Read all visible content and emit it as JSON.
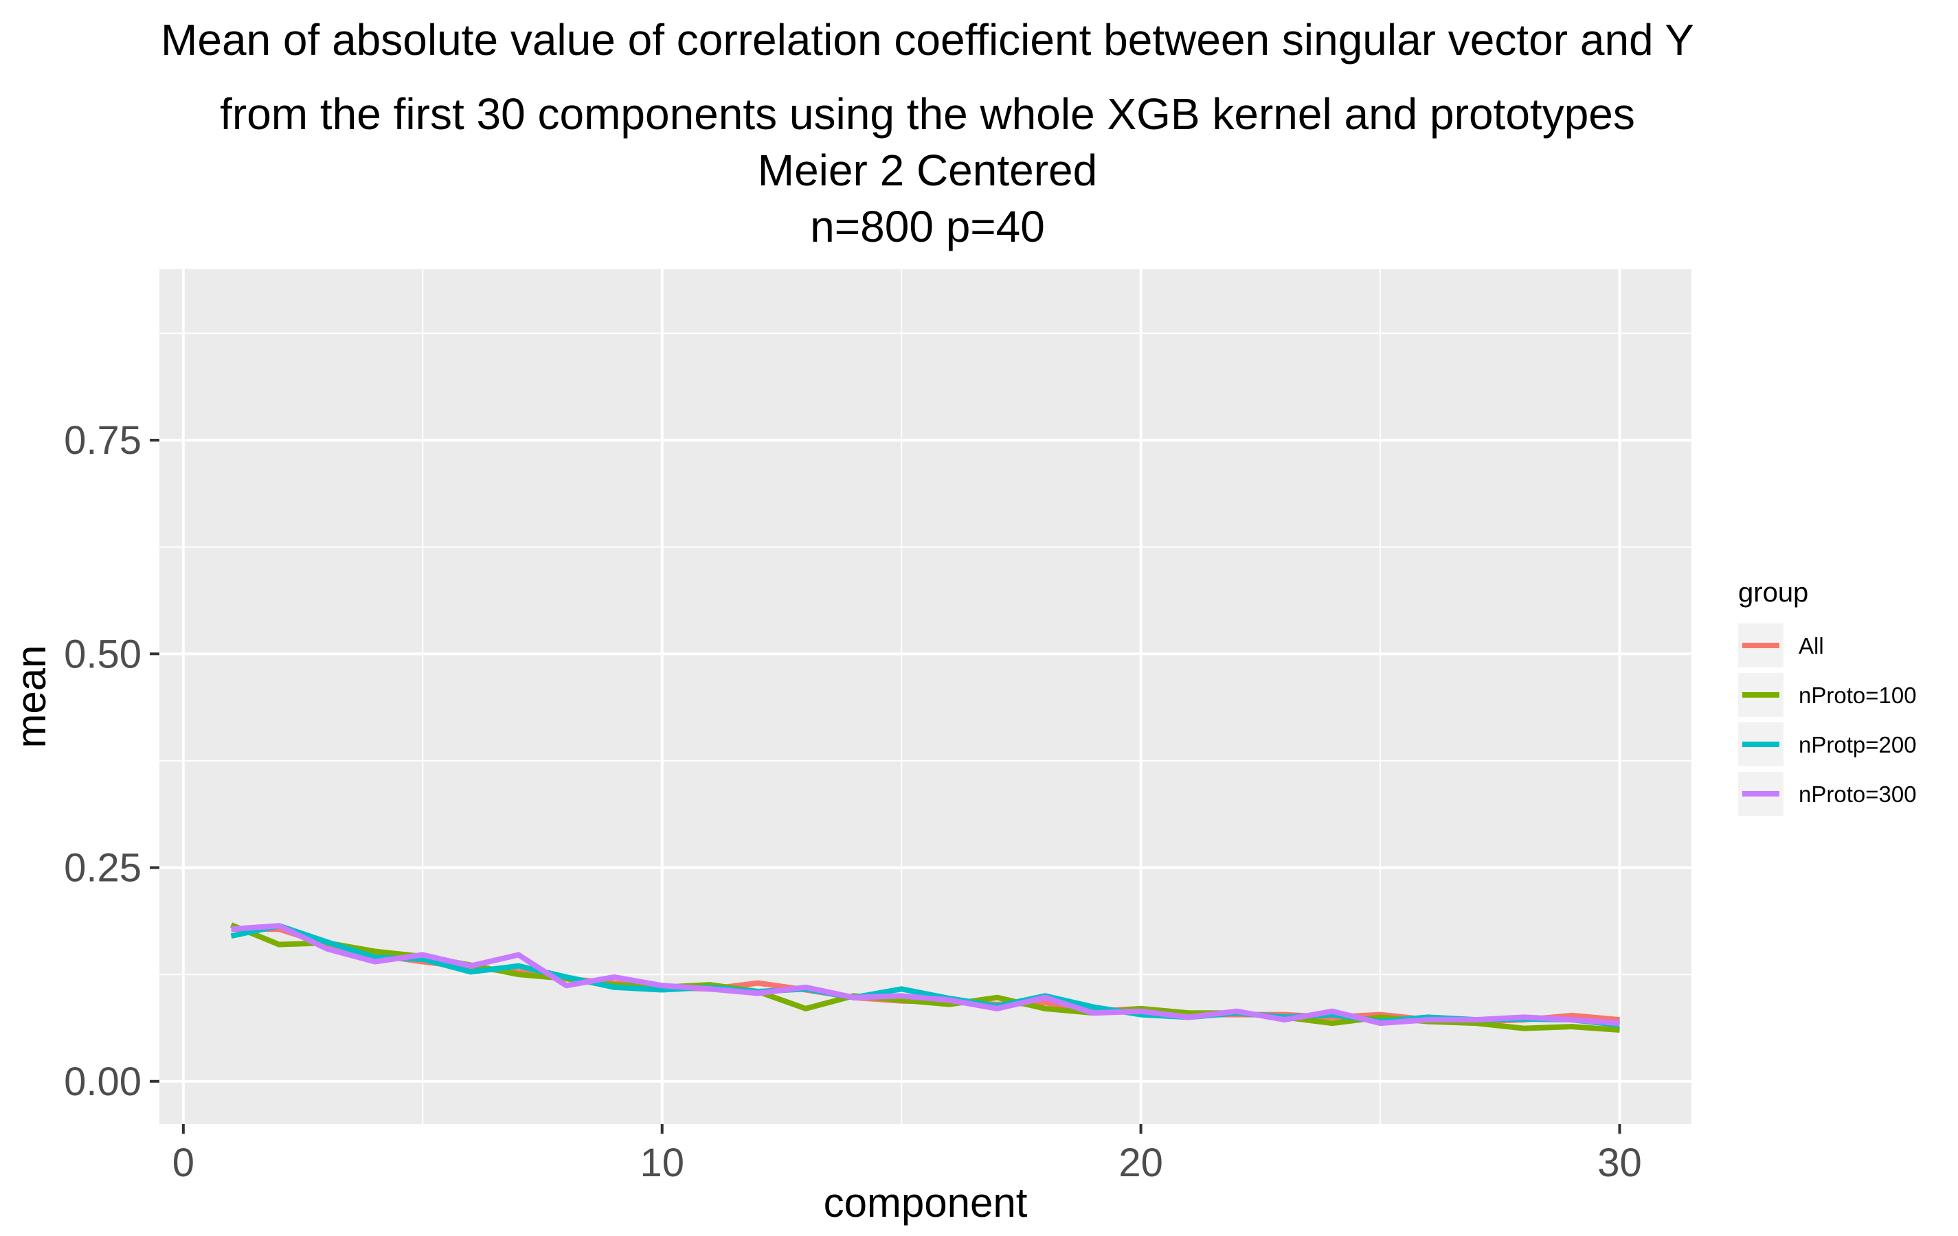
{
  "title_lines": [
    "Mean of absolute value of correlation coefficient between singular vector and Y",
    "from the first 30 components using the whole XGB kernel and prototypes",
    "Meier 2 Centered",
    "n=800 p=40"
  ],
  "chart_data": {
    "type": "line",
    "xlabel": "component",
    "ylabel": "mean",
    "xlim": [
      -0.5,
      31.5
    ],
    "ylim": [
      -0.05,
      0.95
    ],
    "x_ticks": [
      0,
      10,
      20,
      30
    ],
    "x_tick_labels": [
      "0",
      "10",
      "20",
      "30"
    ],
    "y_ticks": [
      0,
      0.25,
      0.5,
      0.75
    ],
    "y_tick_labels": [
      "0.00",
      "0.25",
      "0.50",
      "0.75"
    ],
    "grid": true,
    "background": "#ebebeb",
    "legend": {
      "title": "group",
      "position": "right"
    },
    "x": [
      1,
      2,
      3,
      4,
      5,
      6,
      7,
      8,
      9,
      10,
      11,
      12,
      13,
      14,
      15,
      16,
      17,
      18,
      19,
      20,
      21,
      22,
      23,
      24,
      25,
      26,
      27,
      28,
      29,
      30
    ],
    "series": [
      {
        "name": "All",
        "color": "#F8766D",
        "values": [
          0.178,
          0.178,
          0.16,
          0.148,
          0.14,
          0.133,
          0.128,
          0.12,
          0.115,
          0.11,
          0.108,
          0.115,
          0.107,
          0.098,
          0.094,
          0.093,
          0.09,
          0.092,
          0.082,
          0.085,
          0.078,
          0.078,
          0.078,
          0.075,
          0.078,
          0.072,
          0.07,
          0.072,
          0.077,
          0.072
        ]
      },
      {
        "name": "nProto=100",
        "color": "#7CAE00",
        "values": [
          0.183,
          0.16,
          0.162,
          0.152,
          0.146,
          0.136,
          0.125,
          0.12,
          0.113,
          0.11,
          0.113,
          0.105,
          0.085,
          0.1,
          0.095,
          0.09,
          0.098,
          0.085,
          0.08,
          0.085,
          0.08,
          0.08,
          0.075,
          0.068,
          0.075,
          0.07,
          0.068,
          0.062,
          0.064,
          0.06
        ]
      },
      {
        "name": "nProtp=200",
        "color": "#00BFC4",
        "values": [
          0.17,
          0.182,
          0.163,
          0.145,
          0.143,
          0.128,
          0.135,
          0.122,
          0.11,
          0.107,
          0.11,
          0.105,
          0.108,
          0.098,
          0.108,
          0.097,
          0.088,
          0.1,
          0.087,
          0.078,
          0.075,
          0.08,
          0.075,
          0.078,
          0.07,
          0.075,
          0.072,
          0.073,
          0.072,
          0.066
        ]
      },
      {
        "name": "nProto=300",
        "color": "#C77CFF",
        "values": [
          0.178,
          0.182,
          0.155,
          0.14,
          0.148,
          0.135,
          0.148,
          0.112,
          0.122,
          0.112,
          0.108,
          0.103,
          0.11,
          0.098,
          0.1,
          0.095,
          0.085,
          0.098,
          0.08,
          0.082,
          0.075,
          0.082,
          0.072,
          0.082,
          0.068,
          0.072,
          0.072,
          0.075,
          0.072,
          0.068
        ]
      }
    ]
  }
}
